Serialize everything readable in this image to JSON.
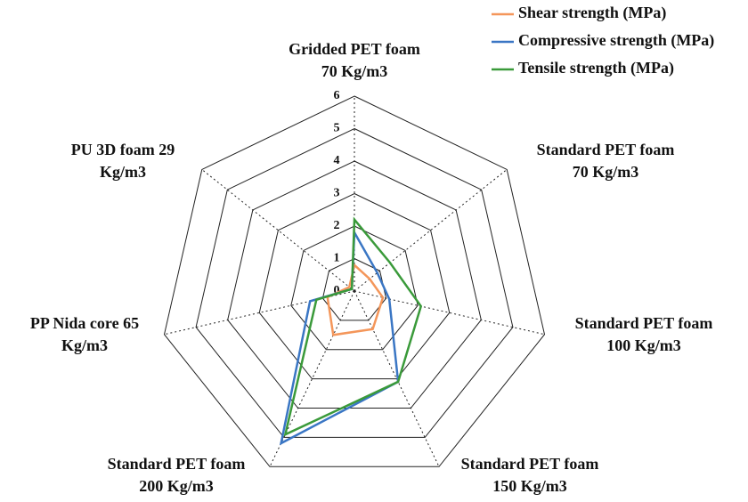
{
  "chart_data": {
    "type": "radar",
    "categories": [
      [
        "Gridded PET foam",
        "70 Kg/m3"
      ],
      [
        "Standard PET foam",
        "70 Kg/m3"
      ],
      [
        "Standard PET foam",
        "100 Kg/m3"
      ],
      [
        "Standard PET foam",
        "150 Kg/m3"
      ],
      [
        "Standard PET foam",
        "200 Kg/m3"
      ],
      [
        "PP Nida core 65",
        "Kg/m3"
      ],
      [
        "PU 3D foam 29",
        "Kg/m3"
      ]
    ],
    "series": [
      {
        "name": "Shear strength (MPa)",
        "color": "#f4965a",
        "values": [
          0.8,
          0.6,
          0.9,
          1.3,
          1.5,
          0.85,
          0.2
        ]
      },
      {
        "name": "Compressive strength (MPa)",
        "color": "#3a76c4",
        "values": [
          1.8,
          0.9,
          1.1,
          3.1,
          5.2,
          1.4,
          0.1
        ]
      },
      {
        "name": "Tensile strength (MPa)",
        "color": "#3a9a3a",
        "values": [
          2.2,
          1.4,
          2.1,
          3.1,
          4.9,
          1.2,
          0.1
        ]
      }
    ],
    "ylim": [
      0,
      6
    ],
    "yticks": [
      0,
      1,
      2,
      3,
      4,
      5,
      6
    ],
    "grid": true,
    "legend": "upper right"
  }
}
